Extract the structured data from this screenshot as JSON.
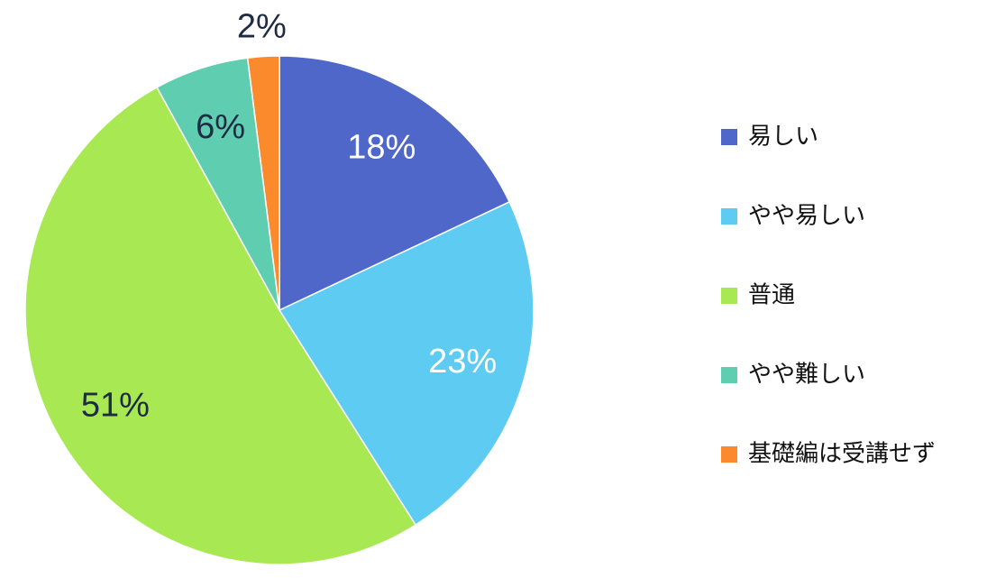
{
  "chart_data": {
    "type": "pie",
    "categories": [
      "易しい",
      "やや易しい",
      "普通",
      "やや難しい",
      "基礎編は受講せず"
    ],
    "values": [
      18,
      23,
      51,
      6,
      2
    ],
    "value_labels": [
      "18%",
      "23%",
      "51%",
      "6%",
      "2%"
    ],
    "colors": [
      "#4f67c9",
      "#5ecbf2",
      "#a8e852",
      "#5ecdb0",
      "#fb8a2c"
    ],
    "label_colors": [
      "#ffffff",
      "#ffffff",
      "#1f2a44",
      "#1f2a44",
      "#1f2a44"
    ],
    "legend": "right"
  }
}
